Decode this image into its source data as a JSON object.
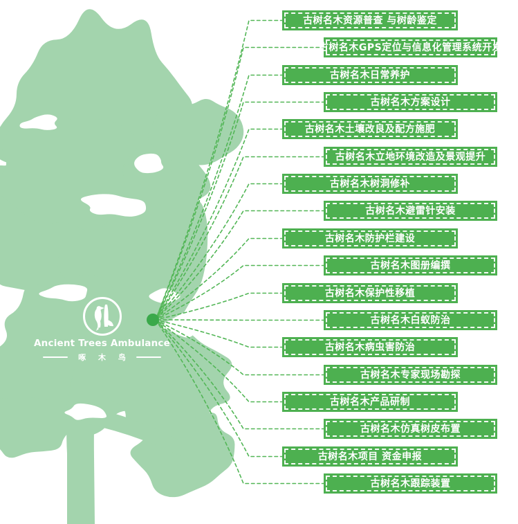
{
  "colors": {
    "label_green": "#4db050",
    "tree_green": "#a3d4ad",
    "line_green": "#52b656",
    "dot_green": "#3aa94a",
    "text_white": "#ffffff"
  },
  "logo": {
    "icon": "woodpecker-icon",
    "brand_en": "Ancient Trees Ambulance",
    "brand_cn": "啄 木 鸟"
  },
  "diagram": {
    "hub_icon": "hub-dot",
    "services": [
      "古树名木资源普查 与树龄鉴定",
      "古树名木GPS定位与信息化管理系统开发",
      "古树名木日常养护",
      "古树名木方案设计",
      "古树名木土壤改良及配方施肥",
      "古树名木立地环境改造及景观提升",
      "古树名木树洞修补",
      "古树名木避雷针安装",
      "古树名木防护栏建设",
      "古树名木图册编撰",
      "古树名木保护性移植",
      "古树名木白蚁防治",
      "古树名木病虫害防治",
      "古树名木专家现场勘探",
      "古树名木产品研制",
      "古树名木仿真树皮布置",
      "古树名木项目 资金申报",
      "古树名木跟踪装置"
    ]
  }
}
